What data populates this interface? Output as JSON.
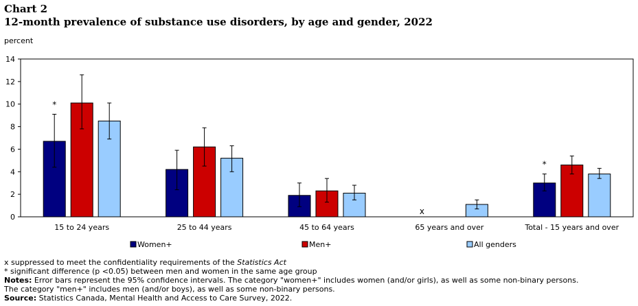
{
  "header": {
    "chart_label": "Chart 2",
    "title": "12-month prevalence of substance use disorders, by age and gender, 2022"
  },
  "colors": {
    "women": "#000080",
    "men": "#cc0000",
    "all": "#99ccff"
  },
  "chart_data": {
    "type": "bar",
    "title": "12-month prevalence of substance use disorders, by age and gender, 2022",
    "ylabel": "percent",
    "xlabel": "",
    "ylim": [
      0,
      14
    ],
    "yticks": [
      0,
      2,
      4,
      6,
      8,
      10,
      12,
      14
    ],
    "grid": false,
    "legend_position": "bottom",
    "categories": [
      "15 to 24 years",
      "25 to 44 years",
      "45 to 64 years",
      "65 years and over",
      "Total - 15 years and over"
    ],
    "series": [
      {
        "name": "Women+",
        "values": [
          6.7,
          4.2,
          1.9,
          null,
          3.0
        ],
        "ci_low": [
          4.4,
          2.4,
          0.9,
          null,
          2.3
        ],
        "ci_high": [
          9.1,
          5.9,
          3.0,
          null,
          3.8
        ]
      },
      {
        "name": "Men+",
        "values": [
          10.1,
          6.2,
          2.3,
          null,
          4.6
        ],
        "ci_low": [
          7.8,
          4.5,
          1.3,
          null,
          3.8
        ],
        "ci_high": [
          12.6,
          7.9,
          3.4,
          null,
          5.4
        ]
      },
      {
        "name": "All genders",
        "values": [
          8.5,
          5.2,
          2.1,
          1.1,
          3.8
        ],
        "ci_low": [
          6.9,
          4.0,
          1.5,
          0.7,
          3.4
        ],
        "ci_high": [
          10.1,
          6.3,
          2.8,
          1.5,
          4.3
        ]
      }
    ],
    "annotations": [
      {
        "category": 0,
        "series": 0,
        "text": "*"
      },
      {
        "category": 4,
        "series": 0,
        "text": "*"
      },
      {
        "category": 3,
        "series": 0,
        "text": "x"
      }
    ]
  },
  "notes": {
    "suppressed_pre": "x suppressed to meet the confidentiality requirements of the ",
    "suppressed_italic": "Statistics Act",
    "significant": "* significant difference (p <0.05) between men and women in the same age group",
    "notes_label": "Notes:",
    "notes_line1": " Error bars represent the 95% confidence intervals. The category \"women+\" includes women (and/or girls), as well as some non-binary persons.",
    "notes_line2": "The category \"men+\" includes men (and/or boys), as well as some non-binary persons.",
    "source_label": "Source:",
    "source_text": " Statistics Canada, Mental Health and Access to Care Survey, 2022."
  }
}
